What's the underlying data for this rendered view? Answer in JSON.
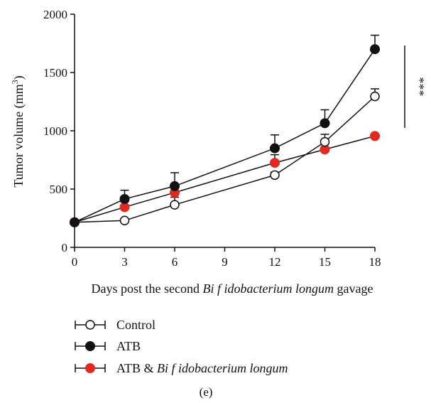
{
  "chart_data": {
    "type": "line",
    "xlabel_parts": [
      "Days post the second ",
      "Bi f idobacterium longum",
      " gavage"
    ],
    "ylabel": "Tumor volume (mm",
    "ylabel_sup": "3",
    "ylabel_close": ")",
    "x_ticks": [
      0,
      3,
      6,
      9,
      12,
      15,
      18
    ],
    "y_ticks": [
      0,
      500,
      1000,
      1500,
      2000
    ],
    "xlim": [
      0,
      18
    ],
    "ylim": [
      0,
      2000
    ],
    "grid": false,
    "legend_placement": "bottom",
    "significance": "***",
    "panel_label": "(e)",
    "series": [
      {
        "name": "Control",
        "marker": "open-circle",
        "color": "#111111",
        "x": [
          0,
          3,
          6,
          12,
          15,
          18
        ],
        "y": [
          215,
          230,
          365,
          620,
          905,
          1295
        ],
        "err": [
          0,
          0,
          65,
          25,
          65,
          65
        ]
      },
      {
        "name": "ATB",
        "marker": "filled-circle",
        "color": "#111111",
        "x": [
          0,
          3,
          6,
          12,
          15,
          18
        ],
        "y": [
          215,
          415,
          525,
          850,
          1065,
          1700
        ],
        "err": [
          0,
          75,
          115,
          115,
          115,
          120
        ]
      },
      {
        "name_parts": [
          "ATB & ",
          "Bi f idobacterium longum"
        ],
        "marker": "filled-circle",
        "color": "#e02a20",
        "x": [
          0,
          3,
          6,
          12,
          15,
          18
        ],
        "y": [
          215,
          345,
          470,
          725,
          840,
          955
        ],
        "err": [
          0,
          45,
          50,
          70,
          50,
          0
        ]
      }
    ]
  }
}
